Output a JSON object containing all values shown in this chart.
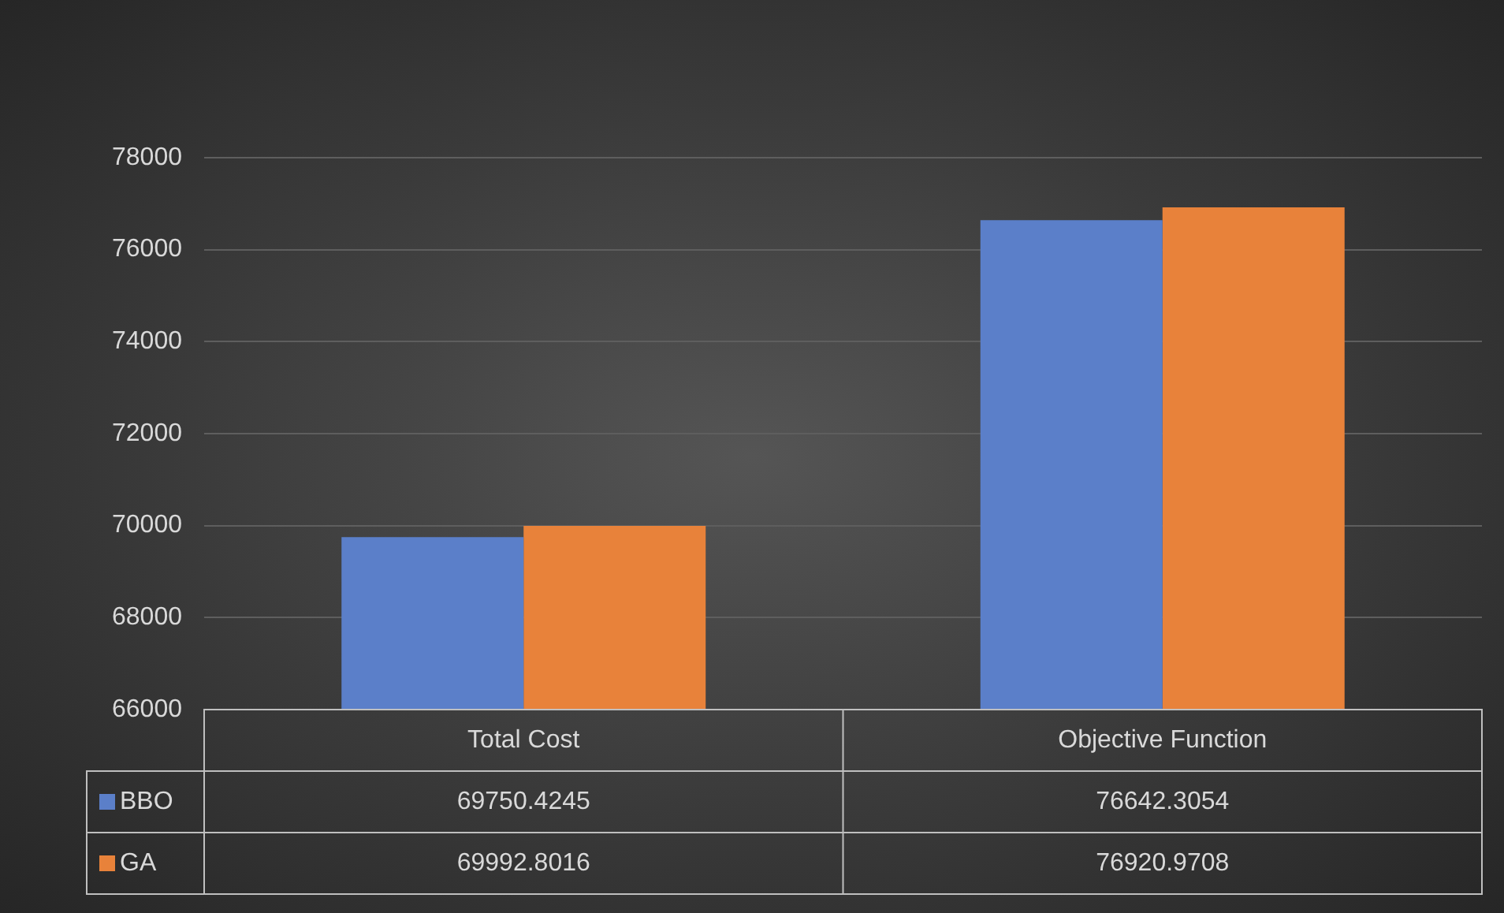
{
  "chart_data": {
    "type": "bar",
    "categories": [
      "Total Cost",
      "Objective Function"
    ],
    "series": [
      {
        "name": "BBO",
        "color": "#5b7fc9",
        "values": [
          69750.4245,
          76642.3054
        ]
      },
      {
        "name": "GA",
        "color": "#e8823a",
        "values": [
          69992.8016,
          76920.9708
        ]
      }
    ],
    "ylim": [
      66000,
      78000
    ],
    "yticks": [
      66000,
      68000,
      70000,
      72000,
      74000,
      76000,
      78000
    ],
    "grid": true,
    "data_labels": true,
    "legend": "bottom"
  }
}
